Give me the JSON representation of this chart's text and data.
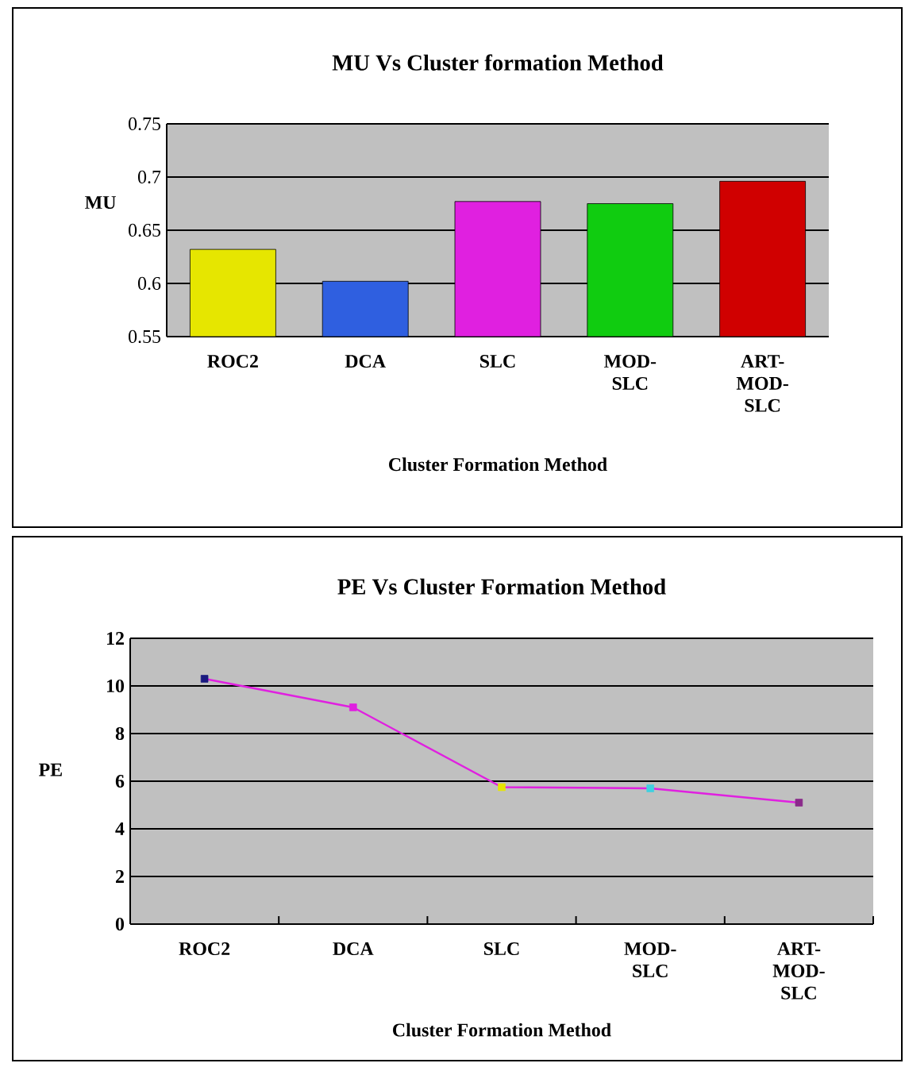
{
  "chart_data": [
    {
      "type": "bar",
      "title": "MU Vs Cluster formation Method",
      "xlabel": "Cluster Formation Method",
      "ylabel": "MU",
      "categories": [
        "ROC2",
        "DCA",
        "SLC",
        "MOD-SLC",
        "ART-MOD-SLC"
      ],
      "values": [
        0.632,
        0.602,
        0.677,
        0.675,
        0.696
      ],
      "colors": [
        "#e6e600",
        "#2f5fe0",
        "#e020e0",
        "#10cc10",
        "#d00000"
      ],
      "ylim": [
        0.55,
        0.75
      ],
      "yticks": [
        0.55,
        0.6,
        0.65,
        0.7,
        0.75
      ],
      "grid": "y"
    },
    {
      "type": "line",
      "title": "PE Vs Cluster Formation Method",
      "xlabel": "Cluster Formation Method",
      "ylabel": "PE",
      "categories": [
        "ROC2",
        "DCA",
        "SLC",
        "MOD-SLC",
        "ART-MOD-SLC"
      ],
      "values": [
        10.3,
        9.1,
        5.75,
        5.7,
        5.1
      ],
      "color": "#e020e0",
      "colors": [
        "#1a1a80",
        "#e020e0",
        "#e6e600",
        "#40d0e0",
        "#8a2a8a"
      ],
      "marker": "square",
      "ylim": [
        0,
        12
      ],
      "yticks": [
        0,
        2,
        4,
        6,
        8,
        10,
        12
      ],
      "grid": "y"
    }
  ]
}
